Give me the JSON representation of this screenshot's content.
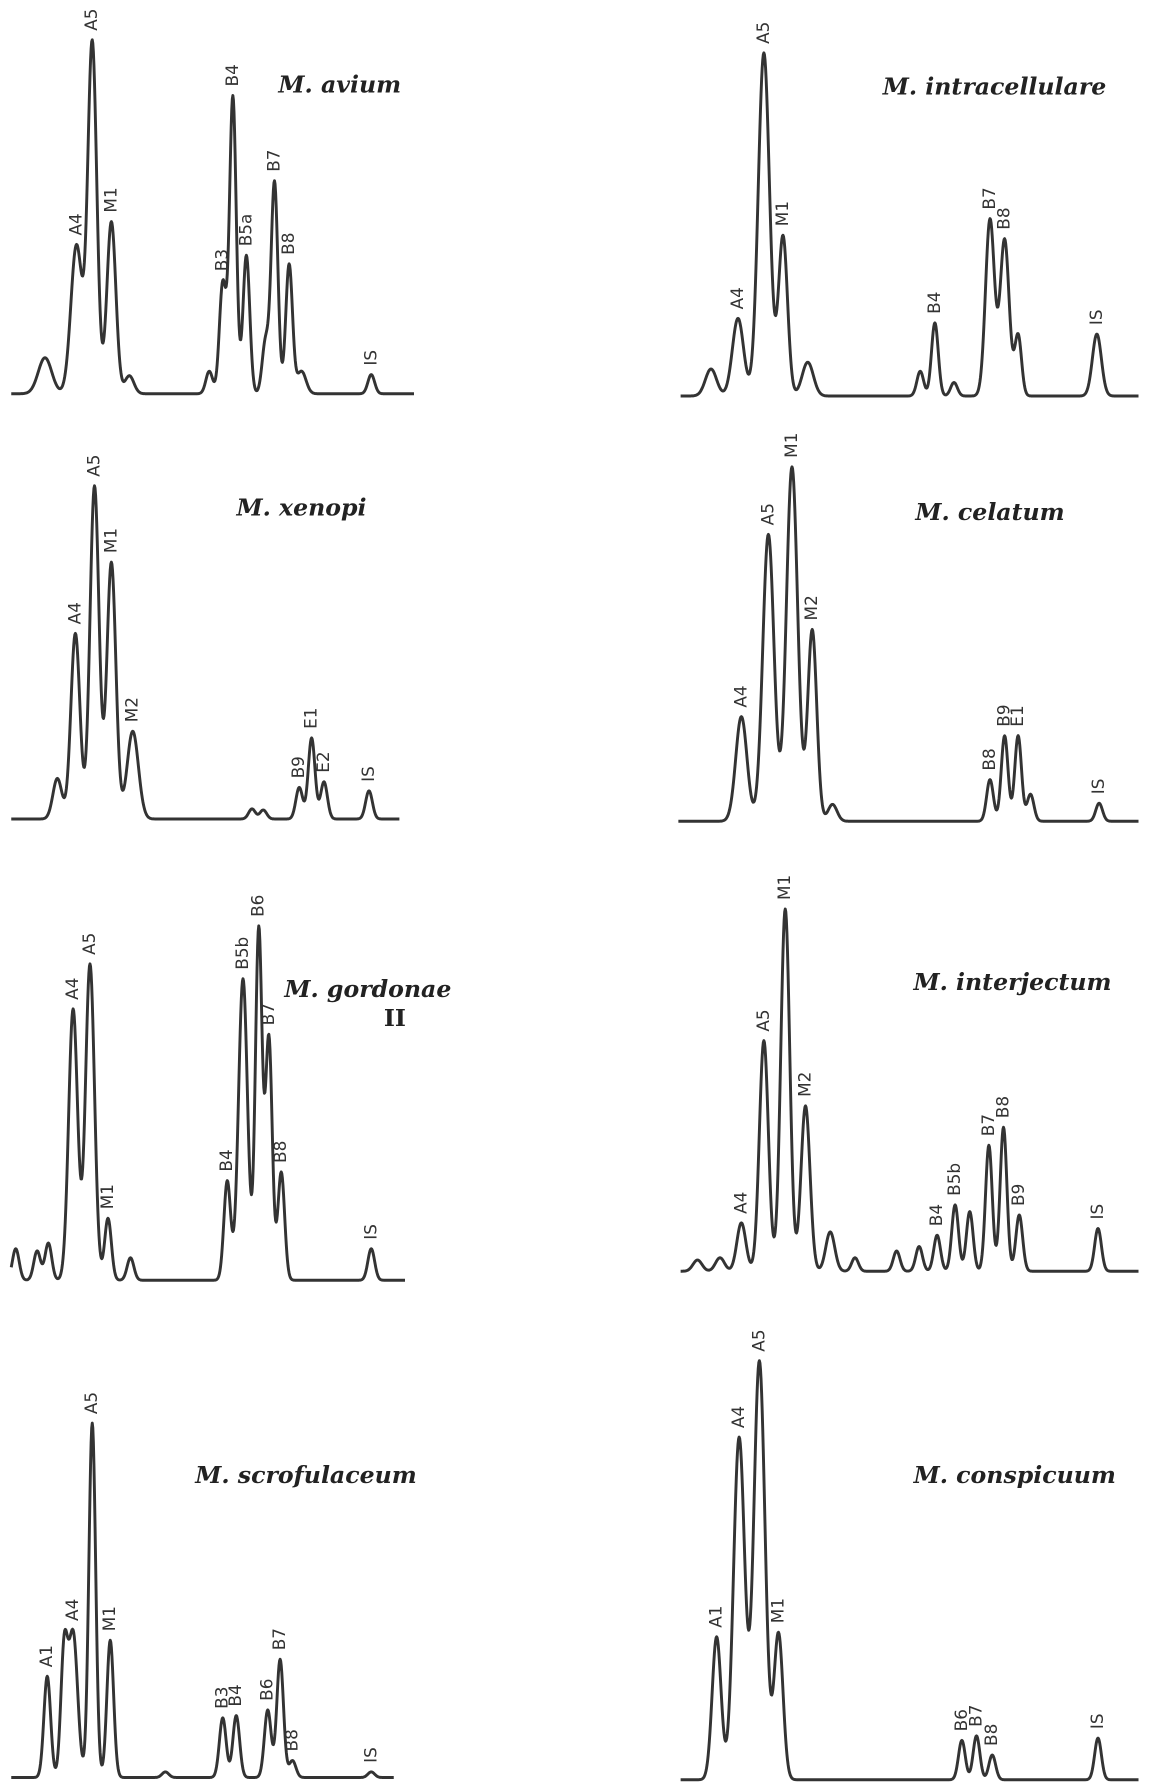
{
  "panels": [
    {
      "title": "M. avium",
      "peaks": [
        "A4",
        "A5",
        "M1",
        "B3",
        "B4",
        "B5a",
        "B7",
        "B8",
        "IS"
      ]
    },
    {
      "title": "M. intracellulare",
      "peaks": [
        "A4",
        "A5",
        "M1",
        "B4",
        "B7",
        "B8",
        "IS"
      ]
    },
    {
      "title": "M. xenopi",
      "peaks": [
        "A4",
        "A5",
        "M1",
        "M2",
        "B9",
        "E1",
        "E2",
        "IS"
      ]
    },
    {
      "title": "M. celatum",
      "peaks": [
        "A4",
        "A5",
        "M1",
        "M2",
        "B8",
        "B9",
        "E1",
        "IS"
      ]
    },
    {
      "title": "M. gordonae",
      "title_line2": "II",
      "peaks": [
        "A4",
        "A5",
        "M1",
        "B4",
        "B5b",
        "B6",
        "B7",
        "B8",
        "IS"
      ]
    },
    {
      "title": "M. interjectum",
      "peaks": [
        "A4",
        "A5",
        "M1",
        "M2",
        "B4",
        "B5b",
        "B7",
        "B8",
        "B9",
        "IS"
      ]
    },
    {
      "title": "M. scrofulaceum",
      "peaks": [
        "A1",
        "A4",
        "A5",
        "M1",
        "B3",
        "B4",
        "B6",
        "B7",
        "B8",
        "IS"
      ]
    },
    {
      "title": "M. conspicuum",
      "peaks": [
        "A1",
        "A4",
        "A5",
        "M1",
        "B6",
        "B7",
        "B8",
        "IS"
      ]
    }
  ]
}
